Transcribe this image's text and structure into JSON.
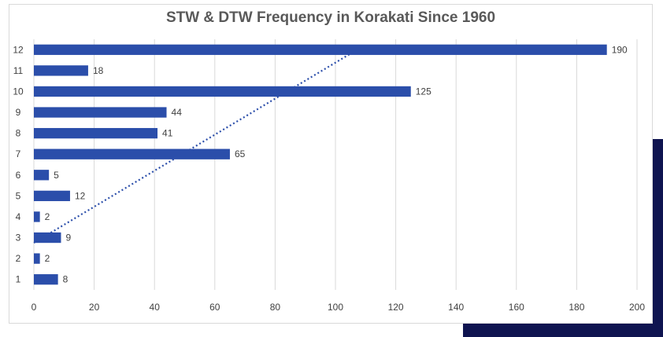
{
  "chart_data": {
    "type": "bar",
    "orientation": "horizontal",
    "title": "STW & DTW Frequency in Korakati Since 1960",
    "xlabel": "",
    "ylabel": "",
    "categories": [
      "1",
      "2",
      "3",
      "4",
      "5",
      "6",
      "7",
      "8",
      "9",
      "10",
      "11",
      "12"
    ],
    "values": [
      8,
      2,
      9,
      2,
      12,
      5,
      65,
      41,
      44,
      125,
      18,
      190
    ],
    "xlim": [
      0,
      200
    ],
    "xticks": [
      0,
      20,
      40,
      60,
      80,
      100,
      120,
      140,
      160,
      180,
      200
    ],
    "grid": "vertical",
    "legend": "none",
    "trendline": "linear, dotted",
    "data_labels": true,
    "colors": {
      "bar": "#2b4eaa",
      "trendline": "#2b4eaa",
      "grid": "#d9d9d9",
      "accent_block": "#0f1450"
    }
  }
}
